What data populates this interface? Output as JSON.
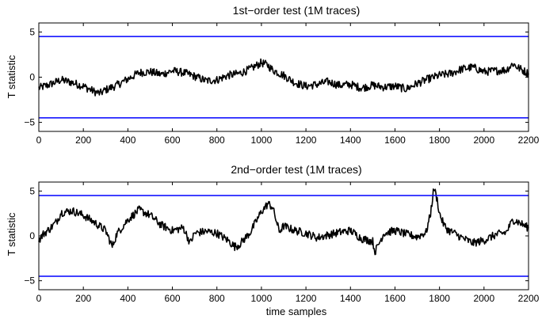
{
  "chart_data": [
    {
      "type": "line",
      "title": "1st−order test (1M traces)",
      "xlabel": "",
      "ylabel": "T statistic",
      "xlim": [
        0,
        2200
      ],
      "ylim": [
        -6,
        6
      ],
      "xticks": [
        "0",
        "200",
        "400",
        "600",
        "800",
        "1000",
        "1200",
        "1400",
        "1600",
        "1800",
        "2000",
        "2200"
      ],
      "yticks": [
        "5",
        "0",
        "−5"
      ],
      "ytick_values": [
        5,
        0,
        -5
      ],
      "thresholds": [
        4.5,
        -4.5
      ],
      "threshold_color": "#0000ff",
      "line_color": "#000000",
      "grid": false,
      "series": [
        {
          "x": [
            0,
            50,
            100,
            150,
            200,
            250,
            275,
            300,
            350,
            400,
            450,
            500,
            550,
            600,
            650,
            700,
            750,
            800,
            850,
            900,
            950,
            1000,
            1030,
            1050,
            1100,
            1150,
            1200,
            1250,
            1300,
            1350,
            1400,
            1450,
            1500,
            1550,
            1600,
            1650,
            1700,
            1750,
            1800,
            1850,
            1900,
            1950,
            2000,
            2050,
            2100,
            2130,
            2150,
            2200
          ],
          "y": [
            -1.2,
            -0.8,
            -0.3,
            -0.6,
            -1.0,
            -1.6,
            -1.8,
            -1.4,
            -0.9,
            -0.2,
            0.5,
            0.6,
            0.3,
            0.7,
            0.5,
            0.1,
            -0.4,
            -0.3,
            0.2,
            0.4,
            0.9,
            1.6,
            1.3,
            0.8,
            0.2,
            -0.6,
            -1.0,
            -0.8,
            -0.5,
            -0.9,
            -0.8,
            -1.2,
            -0.9,
            -1.1,
            -1.0,
            -1.3,
            -0.7,
            -0.2,
            0.2,
            0.4,
            0.9,
            1.1,
            0.6,
            0.7,
            0.8,
            1.5,
            1.1,
            0.4
          ]
        }
      ]
    },
    {
      "type": "line",
      "title": "2nd−order test (1M traces)",
      "xlabel": "time samples",
      "ylabel": "T statistic",
      "xlim": [
        0,
        2200
      ],
      "ylim": [
        -6,
        6
      ],
      "xticks": [
        "0",
        "200",
        "400",
        "600",
        "800",
        "1000",
        "1200",
        "1400",
        "1600",
        "1800",
        "2000",
        "2200"
      ],
      "yticks": [
        "5",
        "0",
        "−5"
      ],
      "ytick_values": [
        5,
        0,
        -5
      ],
      "thresholds": [
        4.5,
        -4.5
      ],
      "threshold_color": "#0000ff",
      "line_color": "#000000",
      "grid": false,
      "series": [
        {
          "x": [
            0,
            20,
            50,
            80,
            100,
            150,
            200,
            250,
            300,
            330,
            350,
            400,
            450,
            500,
            550,
            600,
            650,
            680,
            700,
            750,
            800,
            850,
            880,
            900,
            950,
            1000,
            1030,
            1050,
            1080,
            1100,
            1150,
            1200,
            1250,
            1300,
            1350,
            1400,
            1450,
            1500,
            1510,
            1550,
            1600,
            1650,
            1700,
            1740,
            1760,
            1775,
            1790,
            1800,
            1820,
            1840,
            1860,
            1900,
            1950,
            2000,
            2050,
            2100,
            2130,
            2150,
            2200
          ],
          "y": [
            -0.5,
            0.2,
            0.8,
            1.6,
            2.6,
            2.8,
            2.3,
            1.5,
            0.6,
            -1.2,
            0.2,
            1.8,
            2.9,
            2.3,
            1.2,
            0.6,
            0.9,
            -0.8,
            0.3,
            0.5,
            0.3,
            -0.5,
            -1.2,
            -1.0,
            0.4,
            2.7,
            3.6,
            3.2,
            0.5,
            1.1,
            0.6,
            0.3,
            -0.2,
            0.1,
            0.4,
            0.6,
            -0.3,
            -0.6,
            -1.8,
            0.3,
            0.6,
            0.2,
            -0.1,
            0.4,
            2.5,
            5.4,
            4.0,
            2.5,
            1.2,
            0.6,
            0.4,
            -0.2,
            -0.8,
            -0.5,
            0.1,
            0.4,
            1.8,
            1.6,
            0.9
          ]
        }
      ]
    }
  ]
}
